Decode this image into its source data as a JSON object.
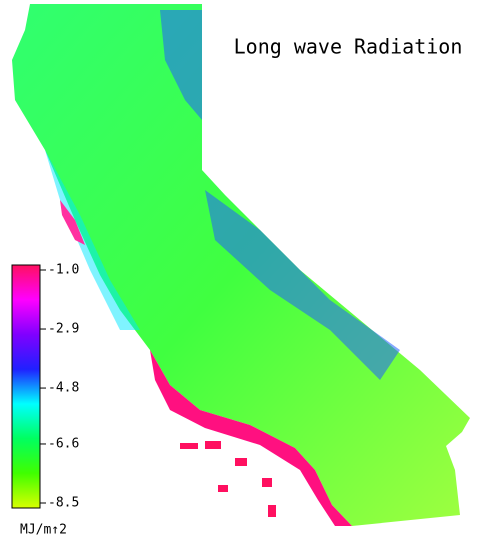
{
  "title": "Long wave Radiation",
  "colorbar": {
    "label": "MJ/m↑2",
    "lim": [
      -8.5,
      -1
    ],
    "ticks": [
      {
        "value": -1,
        "label": "-1.0"
      },
      -2.9,
      -4.8,
      -6.6,
      -8.5
    ],
    "colors": [
      "#ff1060",
      "#ff00ff",
      "#8000ff",
      "#2020ff",
      "#00ffff",
      "#00ff60",
      "#40ff00",
      "#d8ff00"
    ]
  }
}
